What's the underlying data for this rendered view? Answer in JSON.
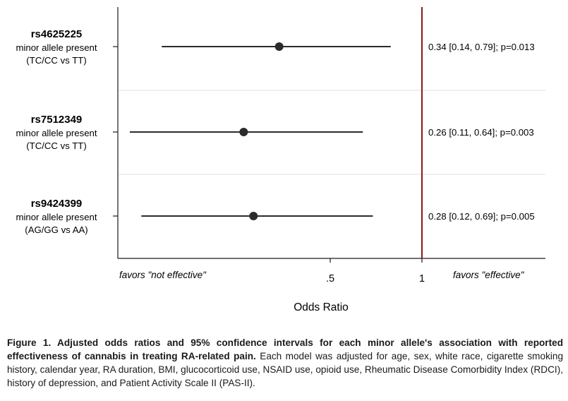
{
  "chart_data": {
    "type": "forest",
    "x_scale": "log",
    "xlim": [
      0.1,
      1.35
    ],
    "reference_line": 1,
    "xticks": [
      {
        "value": 0.5,
        "label": ".5"
      },
      {
        "value": 1,
        "label": "1"
      }
    ],
    "xlabel": "Odds Ratio",
    "direction_left": "favors \"not effective\"",
    "direction_right": "favors \"effective\"",
    "grid": "horizontal separators between rows",
    "rows": [
      {
        "snp": "rs4625225",
        "desc": "minor allele present",
        "comparison": "(TC/CC vs TT)",
        "or": 0.34,
        "lo": 0.14,
        "hi": 0.79,
        "annotation": "0.34 [0.14, 0.79]; p=0.013"
      },
      {
        "snp": "rs7512349",
        "desc": "minor allele present",
        "comparison": "(TC/CC vs TT)",
        "or": 0.26,
        "lo": 0.11,
        "hi": 0.64,
        "annotation": "0.26 [0.11, 0.64]; p=0.003"
      },
      {
        "snp": "rs9424399",
        "desc": "minor allele present",
        "comparison": "(AG/GG vs AA)",
        "or": 0.28,
        "lo": 0.12,
        "hi": 0.69,
        "annotation": "0.28 [0.12, 0.69]; p=0.005"
      }
    ],
    "colors": {
      "reference": "#8b1a1a",
      "marker": "#2b2b2b",
      "separator": "#dde8ec"
    }
  },
  "caption": {
    "bold": "Figure 1. Adjusted odds ratios and 95% confidence intervals for each minor allele's association with reported effectiveness of cannabis in treating RA-related pain.",
    "text": " Each model was adjusted for age, sex, white race, cigarette smoking history, calendar year, RA duration, BMI, glucocorticoid use, NSAID use, opioid use, Rheumatic Disease Comorbidity Index (RDCI), history of depression, and Patient Activity Scale II (PAS-II)."
  }
}
